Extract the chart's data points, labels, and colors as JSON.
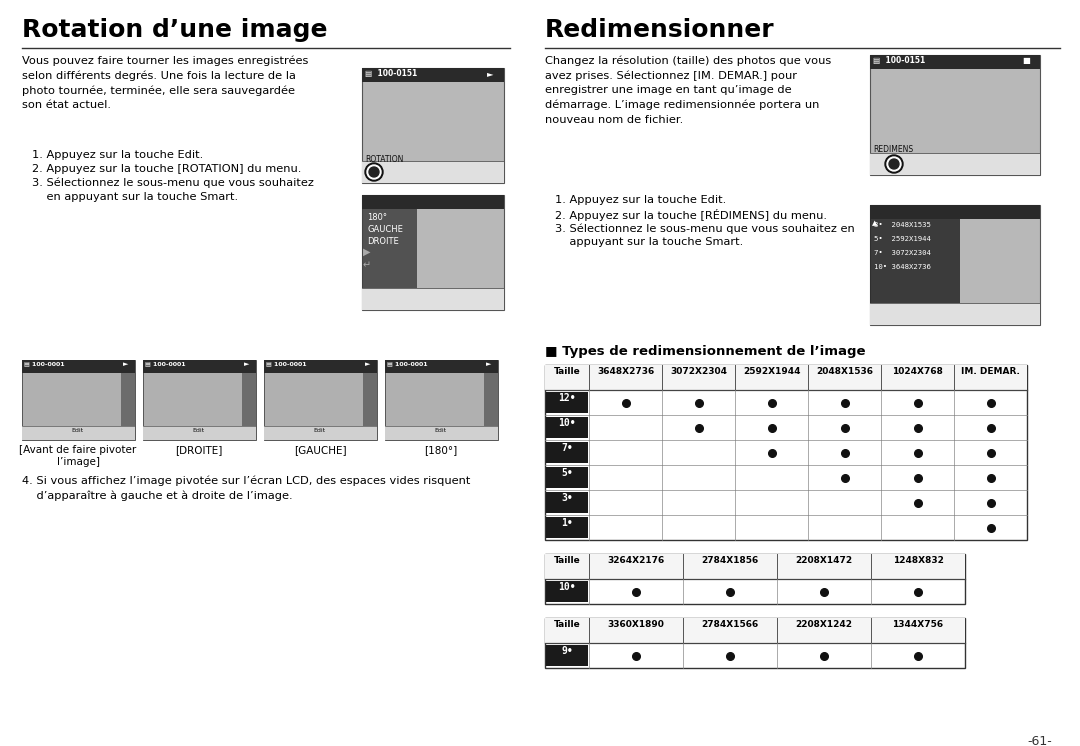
{
  "left_title": "Rotation d’une image",
  "right_title": "Redimensionner",
  "left_para": "Vous pouvez faire tourner les images enregistrées\nselon différents degrés. Une fois la lecture de la\nphoto tournée, terminée, elle sera sauvegardée\nson état actuel.",
  "left_steps": [
    "1. Appuyez sur la touche Edit.",
    "2. Appuyez sur la touche [ROTATION] du menu.",
    "3. Sélectionnez le sous-menu que vous souhaitez\n    en appuyant sur la touche Smart."
  ],
  "left_note": "4. Si vous affichez l’image pivotée sur l’écran LCD, des espaces vides risquent\n    d’apparaître à gauche et à droite de l’image.",
  "left_bottom_labels": [
    "[Avant de faire pivoter\nl’image]",
    "[DROITE]",
    "[GAUCHE]",
    "[180°]"
  ],
  "right_para": "Changez la résolution (taille) des photos que vous\navez prises. Sélectionnez [IM. DEMAR.] pour\nenregistrer une image en tant qu’image de\ndémarrage. L’image redimensionnée portera un\nnouveau nom de fichier.",
  "right_steps": [
    "1. Appuyez sur la touche Edit.",
    "2. Appuyez sur la touche [RÉDIMENS] du menu.",
    "3. Sélectionnez le sous-menu que vous souhaitez en\n    appuyant sur la touche Smart."
  ],
  "types_label": "■ Types de redimensionnement de l’image",
  "table1_header": [
    "Taille",
    "3648X2736",
    "3072X2304",
    "2592X1944",
    "2048X1536",
    "1024X768",
    "IM. DEMAR."
  ],
  "table1_rows": [
    {
      "label": "12•",
      "dots": [
        1,
        1,
        1,
        1,
        1,
        1
      ]
    },
    {
      "label": "10•",
      "dots": [
        0,
        1,
        1,
        1,
        1,
        1
      ]
    },
    {
      "label": "7•",
      "dots": [
        0,
        0,
        1,
        1,
        1,
        1
      ]
    },
    {
      "label": "5•",
      "dots": [
        0,
        0,
        0,
        1,
        1,
        1
      ]
    },
    {
      "label": "3•",
      "dots": [
        0,
        0,
        0,
        0,
        1,
        1
      ]
    },
    {
      "label": "1•",
      "dots": [
        0,
        0,
        0,
        0,
        0,
        1
      ]
    }
  ],
  "table2_header": [
    "Taille",
    "3264X2176",
    "2784X1856",
    "2208X1472",
    "1248X832"
  ],
  "table2_rows": [
    {
      "label": "10•",
      "dots": [
        1,
        1,
        1,
        1
      ]
    }
  ],
  "table3_header": [
    "Taille",
    "3360X1890",
    "2784X1566",
    "2208X1242",
    "1344X756"
  ],
  "table3_rows": [
    {
      "label": "9•",
      "dots": [
        1,
        1,
        1,
        1
      ]
    }
  ],
  "page_number": "-61-",
  "bg_color": "#ffffff"
}
